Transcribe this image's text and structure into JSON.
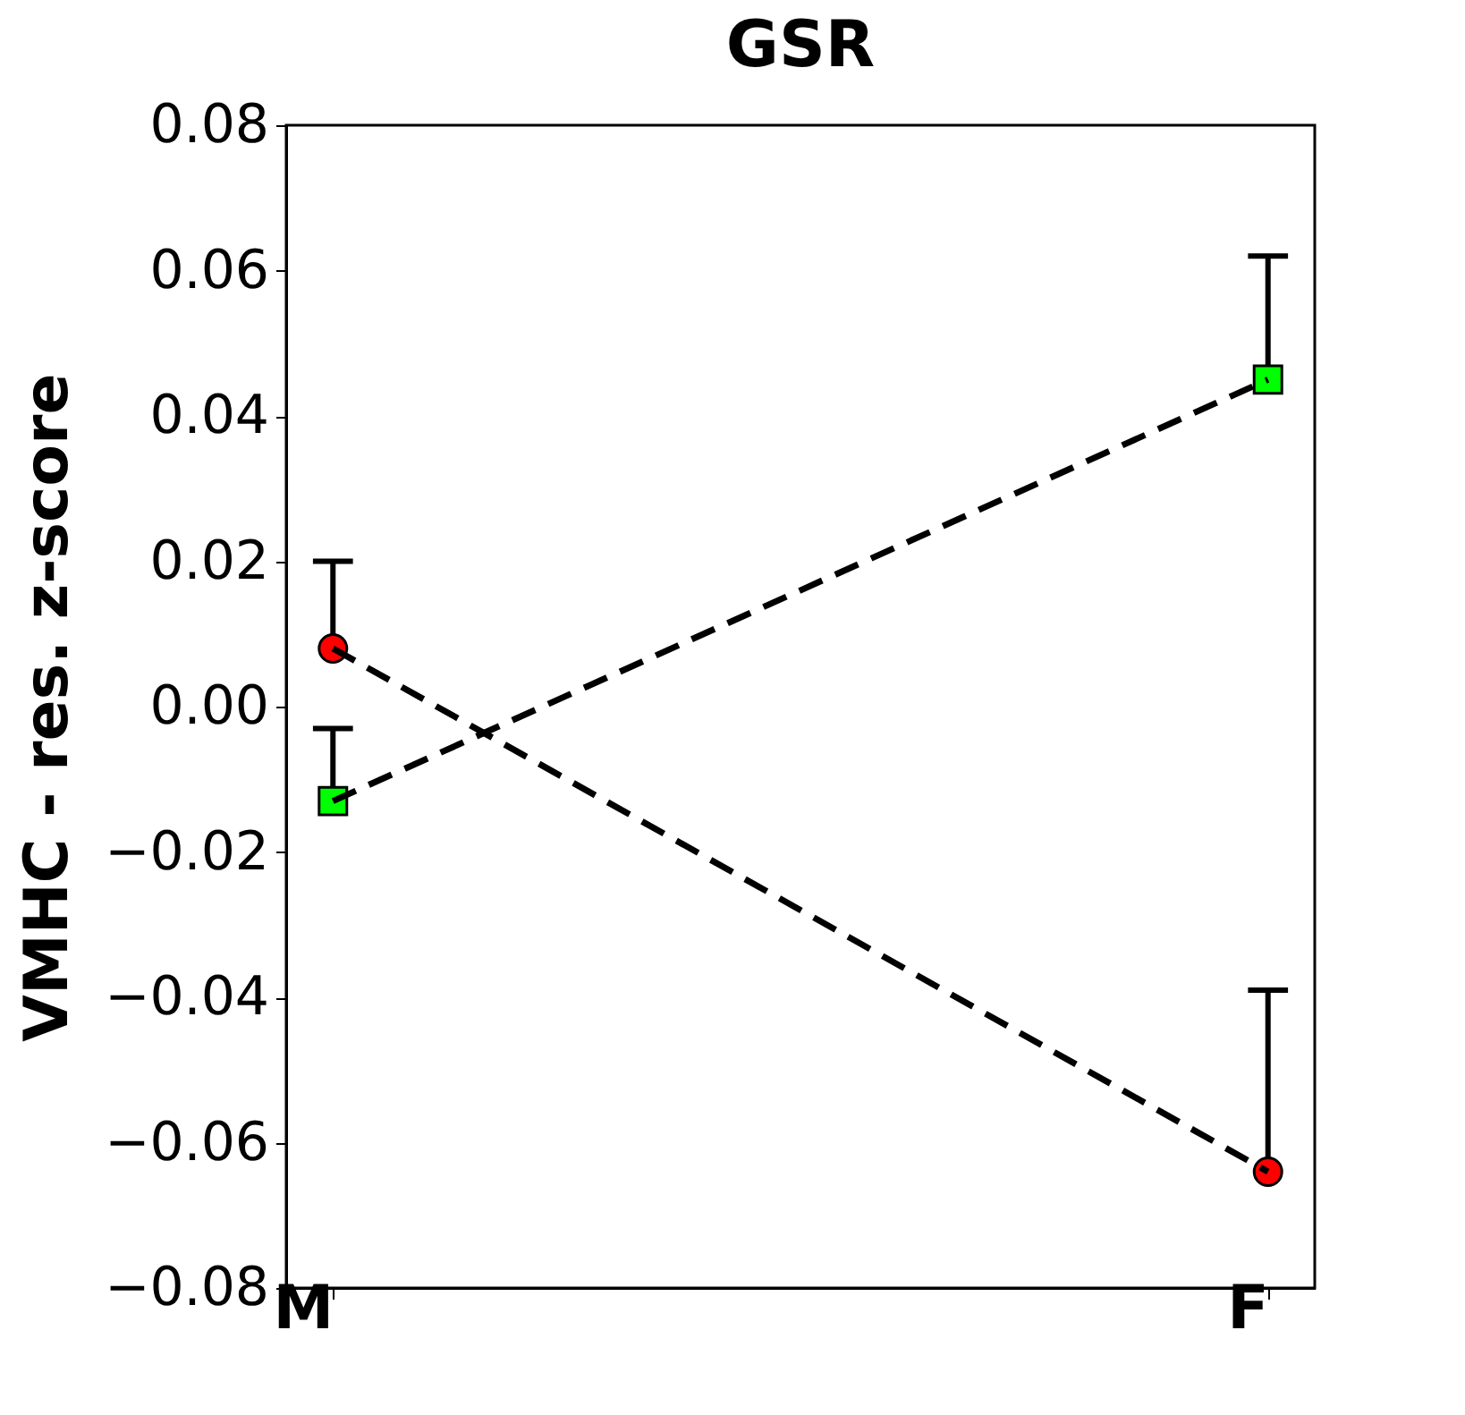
{
  "chart_data": {
    "type": "line",
    "title": "GSR",
    "ylabel": "VMHC - res. z-score",
    "categories": [
      "M",
      "F"
    ],
    "series": [
      {
        "name": null,
        "color": "#ff0000",
        "marker": "circle",
        "values": [
          0.008,
          -0.064
        ],
        "errors": [
          [
            0.008,
            0.02
          ],
          [
            -0.064,
            -0.039
          ]
        ]
      },
      {
        "name": null,
        "color": "#00ff00",
        "marker": "square",
        "values": [
          -0.013,
          0.045
        ],
        "errors": [
          [
            -0.013,
            -0.003
          ],
          [
            0.045,
            0.062
          ]
        ]
      }
    ],
    "ylim": [
      -0.08,
      0.08
    ],
    "yticks": [
      -0.08,
      -0.06,
      -0.04,
      -0.02,
      {
        "value": 0,
        "label": "0.00"
      },
      0.02,
      0.04,
      0.06,
      0.08
    ],
    "line_style": "dashed",
    "grid": false
  }
}
